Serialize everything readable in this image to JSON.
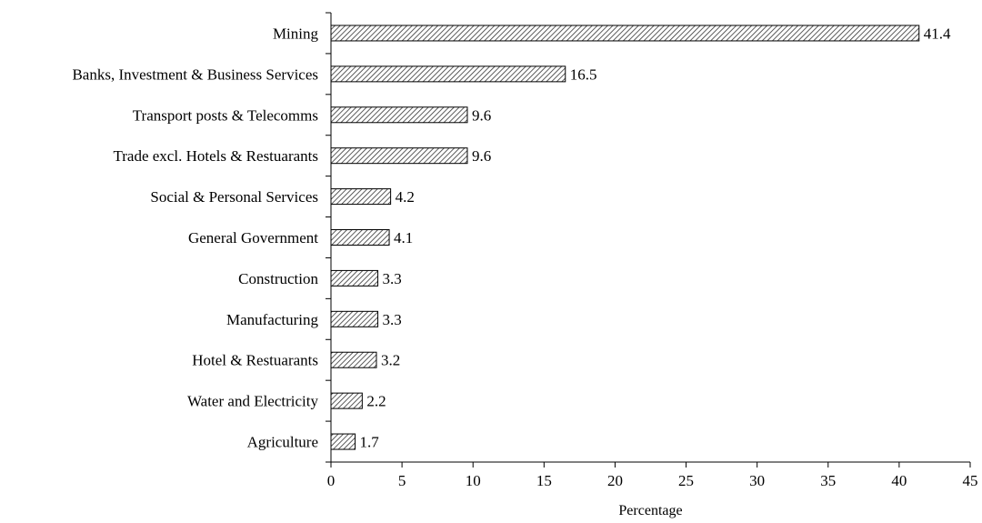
{
  "chart_data": {
    "type": "bar",
    "orientation": "horizontal",
    "categories": [
      "Mining",
      "Banks, Investment & Business Services",
      "Transport posts & Telecomms",
      "Trade excl. Hotels & Restuarants",
      "Social & Personal Services",
      "General Government",
      "Construction",
      "Manufacturing",
      "Hotel & Restuarants",
      "Water and Electricity",
      "Agriculture"
    ],
    "values": [
      41.4,
      16.5,
      9.6,
      9.6,
      4.2,
      4.1,
      3.3,
      3.3,
      3.2,
      2.2,
      1.7
    ],
    "value_labels": [
      "41.4",
      "16.5",
      "9.6",
      "9.6",
      "4.2",
      "4.1",
      "3.3",
      "3.3",
      "3.2",
      "2.2",
      "1.7"
    ],
    "xlabel": "Percentage",
    "xlim": [
      0,
      45
    ],
    "xticks": [
      0,
      5,
      10,
      15,
      20,
      25,
      30,
      35,
      40,
      45
    ],
    "grid": false,
    "legend": "none",
    "bar_fill": "diagonal-hatch",
    "colors": {
      "bar_stroke": "#000000",
      "hatch": "#333333",
      "axis": "#000000",
      "background": "#ffffff"
    }
  }
}
